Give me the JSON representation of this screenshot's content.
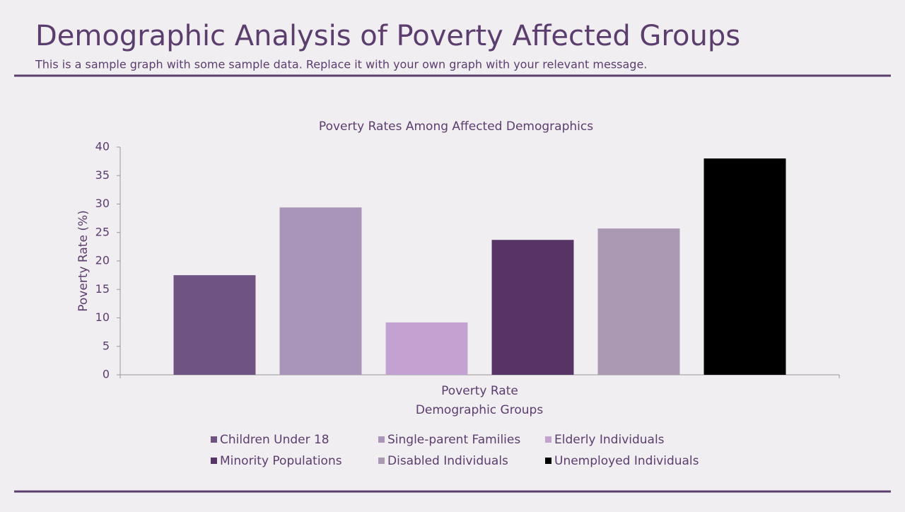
{
  "slide": {
    "title": "Demographic Analysis of Poverty Affected Groups",
    "subtitle": "This is a sample graph with some sample data. Replace it with your own graph with your relevant message."
  },
  "chart_data": {
    "type": "bar",
    "title": "Poverty Rates Among Affected Demographics",
    "x_label": "Demographic Groups",
    "y_label": "Poverty Rate (%)",
    "categories": [
      "Poverty Rate"
    ],
    "series": [
      {
        "name": "Children Under 18",
        "color": "#6f5383",
        "values": [
          17.5
        ]
      },
      {
        "name": "Single-parent Families",
        "color": "#a995b9",
        "values": [
          29.4
        ]
      },
      {
        "name": "Elderly Individuals",
        "color": "#c3a2d2",
        "values": [
          9.2
        ]
      },
      {
        "name": "Minority Populations",
        "color": "#573466",
        "values": [
          23.7
        ]
      },
      {
        "name": "Disabled Individuals",
        "color": "#ab98b3",
        "values": [
          25.7
        ]
      },
      {
        "name": "Unemployed Individuals",
        "color": "#000000",
        "values": [
          38.0
        ]
      }
    ],
    "ylim": [
      0,
      40
    ],
    "yticks": [
      0,
      5,
      10,
      15,
      20,
      25,
      30,
      35,
      40
    ],
    "grid": false,
    "legend": "bottom"
  }
}
